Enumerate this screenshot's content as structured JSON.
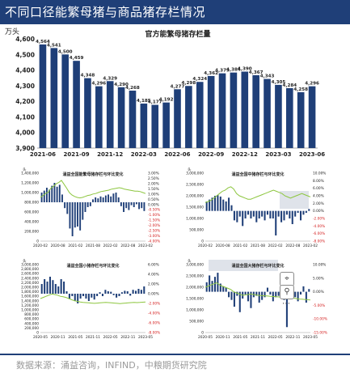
{
  "header": {
    "title": "不同口径能繁母猪与商品猪存栏情况"
  },
  "footer": {
    "source": "数据来源：涌益咨询，INFIND，中粮期货研究院"
  },
  "colors": {
    "bar": "#1f3f78",
    "line": "#8dc63f",
    "header_bg": "#1f3f78",
    "gray_box": "#dfe3ea"
  },
  "icons": {
    "pin": "pin-icon",
    "search": "search-icon",
    "more": "more-icon"
  },
  "chart_data": [
    {
      "type": "bar",
      "title": "官方能繁母猪存栏量",
      "unit_label": "万头",
      "ylim": [
        3900,
        4600
      ],
      "yticks": [
        "3,900",
        "4,000",
        "4,100",
        "4,200",
        "4,300",
        "4,400",
        "4,500",
        "4,600"
      ],
      "xtick_labels": [
        "2021-06",
        "2021-09",
        "2021-12",
        "2022-03",
        "2022-06",
        "2022-09",
        "2022-12",
        "2023-03",
        "2023-06"
      ],
      "values": [
        4564,
        4541,
        4500,
        4459,
        4348,
        4296,
        4329,
        4290,
        4268,
        4185,
        4177,
        4192,
        4277,
        4298,
        4324,
        4362,
        4379,
        4384,
        4390,
        4367,
        4343,
        4305,
        4284,
        4258,
        4296
      ],
      "data_labels": [
        "4,564",
        "4,541",
        "4,500",
        "4,459",
        "4,348",
        "4,296",
        "4,329",
        "4,290",
        "4,268",
        "4,185",
        "4,177",
        "4,192",
        "4,277",
        "4,298",
        "4,324",
        "4,362",
        "4,379",
        "4,384",
        "4,390",
        "4,367",
        "4,343",
        "4,305",
        "4,284",
        "4,258",
        "4,296"
      ]
    },
    {
      "type": "bar+line",
      "title": "涌益全国能繁母猪存栏与环比变化",
      "left_unit": "头",
      "left_ylim": [
        0,
        1400000
      ],
      "left_yticks": [
        "0",
        "200,000",
        "400,000",
        "600,000",
        "800,000",
        "1,000,000",
        "1,200,000",
        "1,400,000"
      ],
      "right_ylim": [
        -4,
        3
      ],
      "right_yticks": [
        "-4.00%",
        "-3.00%",
        "-2.50%",
        "-2.00%",
        "-1.50%",
        "-1.00%",
        "-0.50%",
        "0.00%",
        "0.50%",
        "1.00%",
        "1.50%",
        "2.00%",
        "2.50%",
        "3.00%"
      ],
      "xtick_labels": [
        "2020-02",
        "2020-08",
        "2021-02",
        "2021-08",
        "2022-02",
        "2022-08",
        "2023-02"
      ],
      "line_values": [
        900000,
        940000,
        980000,
        1010000,
        1090000,
        1130000,
        1180000,
        1210000,
        1250000,
        1170000,
        1090000,
        1000000,
        950000,
        920000,
        900000,
        890000,
        900000,
        920000,
        940000,
        950000,
        970000,
        980000,
        1000000,
        1020000,
        1030000,
        1040000,
        1050000,
        1070000,
        1080000,
        1090000,
        1100000,
        1090000,
        1070000,
        1060000,
        1050000,
        1040000,
        1030000,
        1030000,
        1020000,
        1000000,
        980000
      ],
      "bar_values": [
        1.0,
        1.2,
        1.5,
        1.3,
        1.7,
        2.0,
        1.6,
        1.8,
        0.8,
        -0.6,
        -1.2,
        -2.7,
        -3.5,
        -2.6,
        -2.5,
        -2.9,
        -1.8,
        -1.0,
        -0.5,
        -0.4,
        0.3,
        0.5,
        0.4,
        0.6,
        0.5,
        0.7,
        0.8,
        0.6,
        0.9,
        1.0,
        0.5,
        -0.4,
        -1.0,
        -0.6,
        -0.8,
        -0.3,
        -0.5,
        -0.2,
        -0.7,
        -0.6,
        -0.9
      ]
    },
    {
      "type": "bar+line",
      "title": "涌益全国中猪存栏与环比变化",
      "left_unit": "头",
      "left_ylim": [
        0,
        3000000
      ],
      "left_yticks": [
        "0",
        "500,000",
        "1,000,000",
        "1,500,000",
        "2,000,000",
        "2,500,000",
        "3,000,000"
      ],
      "right_ylim": [
        -8,
        10
      ],
      "right_yticks": [
        "-8.00%",
        "-6.00%",
        "-4.00%",
        "-2.00%",
        "0.00%",
        "2.00%",
        "4.00%",
        "6.00%",
        "8.00%",
        "10.00%"
      ],
      "xtick_labels": [
        "2020-02",
        "2020-08",
        "2021-02",
        "2021-08",
        "2022-02",
        "2022-08",
        "2023-02"
      ],
      "line_values": [
        1700000,
        1750000,
        1800000,
        1900000,
        2000000,
        2100000,
        2200000,
        2250000,
        2350000,
        2400000,
        2300000,
        2100000,
        2000000,
        1950000,
        1900000,
        1850000,
        1850000,
        1900000,
        1950000,
        2000000,
        2050000,
        2100000,
        2150000,
        2200000,
        2250000,
        2200000,
        2150000,
        2100000,
        2000000,
        1950000,
        1900000,
        1950000,
        2000000,
        2050000,
        2100000,
        2050000,
        2000000,
        1950000
      ],
      "bar_values": [
        2.5,
        3.0,
        3.5,
        4.0,
        4.2,
        3.8,
        3.0,
        2.5,
        3.5,
        1.5,
        -2.5,
        -3.0,
        -1.5,
        -4.0,
        -2.0,
        -1.0,
        -2.0,
        -1.5,
        -3.0,
        -2.0,
        -1.5,
        -2.5,
        -1.0,
        -2.0,
        -2.0,
        -6.5,
        -1.5,
        -3.0,
        -2.5,
        -1.0,
        -2.0,
        -3.5,
        -1.5,
        -0.5,
        -2.5,
        -1.0,
        -0.5,
        0.5
      ]
    },
    {
      "type": "bar+line",
      "title": "涌益全国小猪存栏与环比变化",
      "left_unit": "头",
      "left_ylim": [
        0,
        3000000
      ],
      "left_yticks": [
        "0",
        "200,000",
        "400,000",
        "600,000",
        "800,000",
        "1,000,000",
        "1,200,000",
        "1,400,000",
        "1,600,000",
        "1,800,000",
        "2,000,000",
        "2,200,000",
        "2,400,000",
        "2,600,000",
        "2,800,000",
        "3,000,000"
      ],
      "right_ylim": [
        -8,
        6
      ],
      "right_yticks": [
        "-8.00%",
        "-6.00%",
        "-4.00%",
        "-2.00%",
        "0.00%",
        "2.00%",
        "4.00%",
        "6.00%"
      ],
      "xtick_labels": [
        "2020-05",
        "2020-11",
        "2021-05",
        "2021-11",
        "2022-05",
        "2022-11",
        "2023-05"
      ],
      "line_values": [
        1500000,
        1550000,
        1600000,
        1650000,
        1700000,
        1680000,
        1650000,
        1600000,
        1580000,
        1550000,
        1500000,
        1450000,
        1400000,
        1380000,
        1350000,
        1330000,
        1320000,
        1310000,
        1300000,
        1290000,
        1300000,
        1310000,
        1320000,
        1330000,
        1320000,
        1310000,
        1300000,
        1290000,
        1280000,
        1290000,
        1300000,
        1310000,
        1320000,
        1330000,
        1320000,
        1330000,
        1340000,
        1350000
      ],
      "bar_values": [
        2.0,
        3.0,
        2.5,
        3.5,
        2.8,
        2.0,
        1.5,
        3.0,
        2.5,
        0.5,
        -1.0,
        -0.5,
        -1.5,
        -2.0,
        -1.0,
        -0.5,
        -1.0,
        -1.5,
        -0.8,
        -1.2,
        -0.5,
        0.3,
        -0.5,
        0.8,
        0.5,
        0.4,
        -0.3,
        -0.8,
        -0.5,
        0.3,
        0.6,
        0.5,
        -0.4,
        0.8,
        0.6,
        1.0,
        0.8,
        1.5
      ]
    },
    {
      "type": "bar+line",
      "title": "涌益全国大猪存栏与环比变化",
      "left_unit": "头",
      "left_ylim": [
        0,
        3000000
      ],
      "left_yticks": [
        "0",
        "500,000",
        "1,000,000",
        "1,500,000",
        "2,000,000",
        "2,500,000",
        "3,000,000"
      ],
      "right_ylim": [
        -15,
        10
      ],
      "right_yticks": [
        "-15.00%",
        "-10.00%",
        "-5.00%",
        "0.00%",
        "5.00%",
        "10.00%"
      ],
      "xtick_labels": [
        "2020-05",
        "2020-11",
        "2021-05",
        "2021-11",
        "2022-05",
        "2022-11",
        "2023-05"
      ],
      "line_values": [
        2000000,
        2050000,
        2100000,
        2150000,
        2200000,
        2100000,
        2050000,
        2000000,
        1950000,
        1900000,
        1800000,
        1750000,
        1700000,
        1650000,
        1650000,
        1680000,
        1700000,
        1680000,
        1650000,
        1640000,
        1630000,
        1620000,
        1610000,
        1600000,
        1590000,
        1580000,
        1570000,
        1560000,
        1550000,
        1540000,
        1530000,
        1520000,
        1500000,
        1480000,
        1470000,
        1460000,
        1450000,
        1440000
      ],
      "bar_values": [
        3.5,
        6.0,
        4.0,
        5.5,
        7.0,
        3.0,
        2.0,
        1.5,
        -2.0,
        -3.0,
        -5.5,
        -1.5,
        -7.5,
        -2.5,
        -1.0,
        -3.5,
        -6.0,
        -2.0,
        -1.5,
        -4.0,
        -3.0,
        -2.0,
        1.5,
        -1.0,
        -3.5,
        -2.0,
        -1.5,
        -2.5,
        -3.0,
        -13.0,
        -1.5,
        -0.5,
        -2.0,
        -3.5,
        -1.0,
        2.0,
        -4.0,
        1.0
      ]
    }
  ]
}
